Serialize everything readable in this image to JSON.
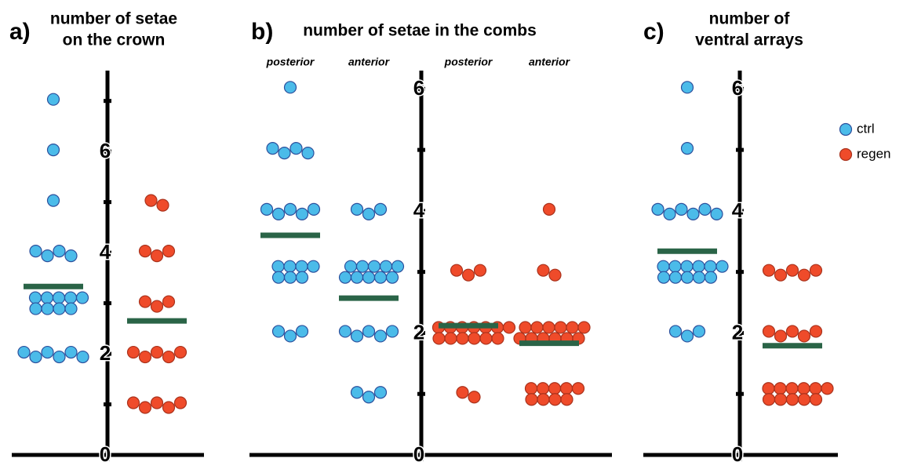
{
  "chart_data": [
    {
      "type": "strip",
      "panel": "a)",
      "title": [
        "number of setae",
        "on the crown"
      ],
      "ylim": [
        0,
        7.6
      ],
      "yticks": [
        0,
        2,
        4,
        6
      ],
      "minor_yticks": [
        1,
        3,
        5,
        7
      ],
      "groups": [
        {
          "color": "#4bbbe9",
          "values": [
            7,
            6,
            5,
            4,
            4,
            4,
            4,
            3,
            3,
            3,
            3,
            3,
            3,
            3,
            3,
            3,
            2,
            2,
            2,
            2,
            2,
            2
          ],
          "mean": 3.33
        },
        {
          "color": "#ef4b2a",
          "values": [
            5,
            5,
            4,
            4,
            4,
            3,
            3,
            3,
            2,
            2,
            2,
            2,
            2,
            1,
            1,
            1,
            1,
            1
          ],
          "mean": 2.65
        }
      ]
    },
    {
      "type": "strip",
      "panel": "b)",
      "title": [
        "number of setae in the combs"
      ],
      "ylim": [
        0,
        6.3
      ],
      "yticks": [
        0,
        2,
        4,
        6
      ],
      "minor_yticks": [
        1,
        3,
        5
      ],
      "groups": [
        {
          "label": "posterior",
          "color": "#4bbbe9",
          "values": [
            6,
            5,
            5,
            5,
            5,
            4,
            4,
            4,
            4,
            4,
            3,
            3,
            3,
            3,
            3,
            3,
            3,
            2,
            2,
            2
          ],
          "mean": 3.6
        },
        {
          "label": "anterior",
          "color": "#4bbbe9",
          "values": [
            4,
            4,
            4,
            3,
            3,
            3,
            3,
            3,
            3,
            3,
            3,
            3,
            3,
            2,
            2,
            2,
            2,
            2,
            1,
            1,
            1
          ],
          "mean": 2.57
        },
        {
          "label": "posterior",
          "color": "#ef4b2a",
          "values": [
            3,
            3,
            3,
            2,
            2,
            2,
            2,
            2,
            2,
            2,
            2,
            2,
            2,
            2,
            2,
            2,
            1,
            1
          ],
          "mean": 2.12
        },
        {
          "label": "anterior",
          "color": "#ef4b2a",
          "values": [
            4,
            3,
            3,
            2,
            2,
            2,
            2,
            2,
            2,
            2,
            2,
            2,
            2,
            2,
            2,
            1,
            1,
            1,
            1,
            1,
            1,
            1,
            1,
            1
          ],
          "mean": 1.83
        }
      ]
    },
    {
      "type": "strip",
      "panel": "c)",
      "title": [
        "number of",
        "ventral arrays"
      ],
      "ylim": [
        0,
        6.3
      ],
      "yticks": [
        0,
        2,
        4,
        6
      ],
      "minor_yticks": [
        1,
        3,
        5
      ],
      "groups": [
        {
          "color": "#4bbbe9",
          "values": [
            6,
            5,
            4,
            4,
            4,
            4,
            4,
            4,
            3,
            3,
            3,
            3,
            3,
            3,
            3,
            3,
            3,
            3,
            3,
            2,
            2,
            2
          ],
          "mean": 3.34
        },
        {
          "color": "#ef4b2a",
          "values": [
            3,
            3,
            3,
            3,
            3,
            2,
            2,
            2,
            2,
            2,
            1,
            1,
            1,
            1,
            1,
            1,
            1,
            1,
            1,
            1,
            1
          ],
          "mean": 1.79
        }
      ]
    }
  ],
  "legend": [
    {
      "name": "ctrl",
      "color": "#4bbbe9"
    },
    {
      "name": "regen",
      "color": "#ef4b2a"
    }
  ]
}
